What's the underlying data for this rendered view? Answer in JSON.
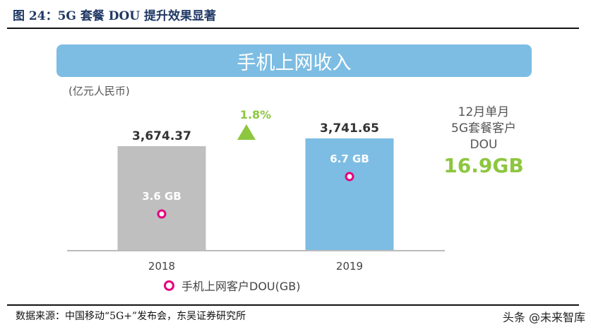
{
  "figure_title": "图 24：5G 套餐 DOU 提升效果显著",
  "source": "数据来源：中国移动“5G+”发布会，东吴证券研究所",
  "watermark": "头条 @未来智库",
  "chart_data": {
    "type": "bar",
    "title": "手机上网收入",
    "ylabel": "(亿元人民币)",
    "categories": [
      "2018",
      "2019"
    ],
    "series": [
      {
        "name": "手机上网收入",
        "values": [
          3674.37,
          3741.65
        ],
        "labels": [
          "3,674.37",
          "3,741.65"
        ],
        "colors": [
          "#bfbfbf",
          "#7dbde3"
        ]
      },
      {
        "name": "手机上网客户DOU(GB)",
        "values": [
          3.6,
          6.7
        ],
        "labels": [
          "3.6 GB",
          "6.7 GB"
        ],
        "marker": "ring",
        "color": "#e6007e"
      }
    ],
    "growth_label": "1.8%",
    "growth_color": "#8dc63f",
    "annotation": {
      "text_lines": [
        "12月单月",
        "5G套餐客户",
        "DOU"
      ],
      "value": "16.9GB"
    },
    "legend": "bottom",
    "grid": false
  }
}
